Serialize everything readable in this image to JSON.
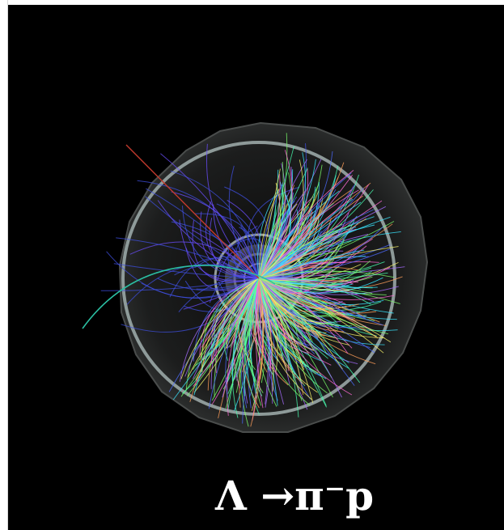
{
  "image": {
    "kind": "particle-collision-event-display",
    "background_color": "#000000",
    "page_color": "#ffffff"
  },
  "caption": {
    "text": "Λ →π⁻p",
    "color": "#ffffff"
  },
  "detector": {
    "outer_ring_color": "#9aa7a6",
    "inner_ring_color": "#b8c2bf",
    "body_color": "#2a2c2c"
  },
  "tracks": {
    "palette": [
      "#39e6ff",
      "#7cff6b",
      "#f7f46a",
      "#ff6bd6",
      "#4d6bff",
      "#a66bff",
      "#48ffb0",
      "#ff9f5a"
    ],
    "highlight_tracks": [
      {
        "name": "red-track",
        "color": "#c23a2d"
      },
      {
        "name": "teal-track",
        "color": "#2bbfa3"
      }
    ]
  }
}
